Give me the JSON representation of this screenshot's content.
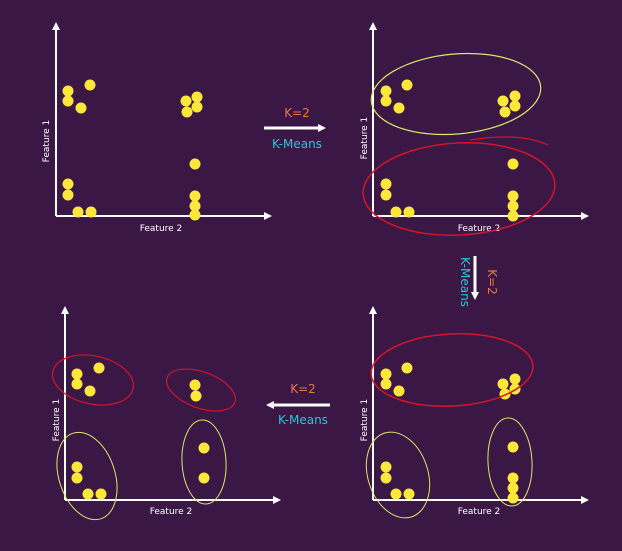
{
  "axis_labels": {
    "x": "Feature 2",
    "y": "Feature 1"
  },
  "arrows": [
    {
      "k": "K=2",
      "method": "K-Means"
    },
    {
      "k": "K=2",
      "method": "K-Means"
    },
    {
      "k": "K=2",
      "method": "K-Means"
    }
  ],
  "colors": {
    "background": "#3a1745",
    "point": "#fde73a",
    "cluster_yellow": "#d8e86a",
    "cluster_red": "#d4152a",
    "k_label": "#e8783c",
    "method_label": "#2ec4d6"
  }
}
